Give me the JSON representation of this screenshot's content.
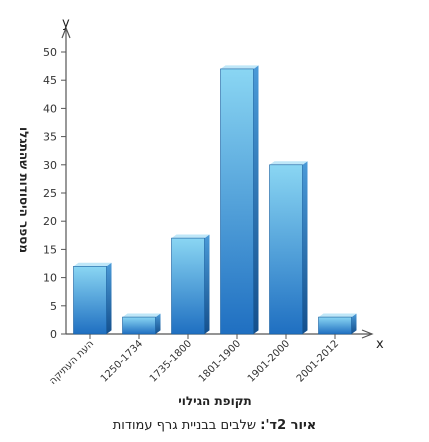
{
  "chart_data": {
    "type": "bar",
    "categories": [
      "העת העתיקה",
      "1250-1734",
      "1735-1800",
      "1801-1900",
      "1901-2000",
      "2001-2012"
    ],
    "values": [
      12,
      3,
      17,
      47,
      30,
      3
    ],
    "xlabel": "תקופת הגילוי",
    "ylabel": "מספר היסודות שהתגלו",
    "x_axis_letter": "x",
    "y_axis_letter": "y",
    "ylim": [
      0,
      50
    ],
    "yticks": [
      0,
      5,
      10,
      15,
      20,
      25,
      30,
      35,
      40,
      45,
      50
    ],
    "grid": false,
    "colors": {
      "bar_top": "#7fd0f0",
      "bar_bottom": "#1e73c4",
      "bar_side": "#1a5fa0",
      "bar_cap": "#bfe7f8",
      "axis": "#555555"
    }
  },
  "caption": {
    "label": "איור 2ד':",
    "text": " שלבים בבניית גרף עמודות"
  }
}
